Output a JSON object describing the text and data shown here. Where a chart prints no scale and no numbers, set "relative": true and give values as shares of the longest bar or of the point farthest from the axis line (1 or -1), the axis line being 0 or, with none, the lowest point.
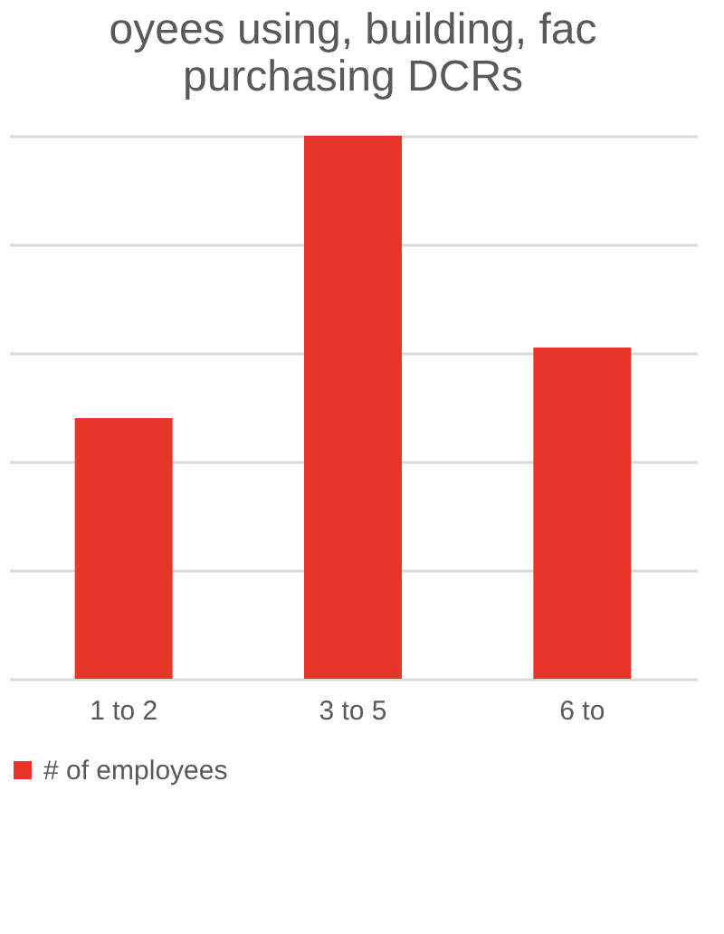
{
  "chart_data": {
    "type": "bar",
    "title": "oyees using, building, fac purchasing DCRs",
    "categories": [
      "1 to 2",
      "3 to 5",
      "6 to"
    ],
    "series": [
      {
        "name": "# of employees",
        "color": "#e8352a",
        "values": [
          0.48,
          1,
          0.61
        ]
      }
    ],
    "relative": true,
    "grid": "y",
    "legend": "bottom"
  }
}
